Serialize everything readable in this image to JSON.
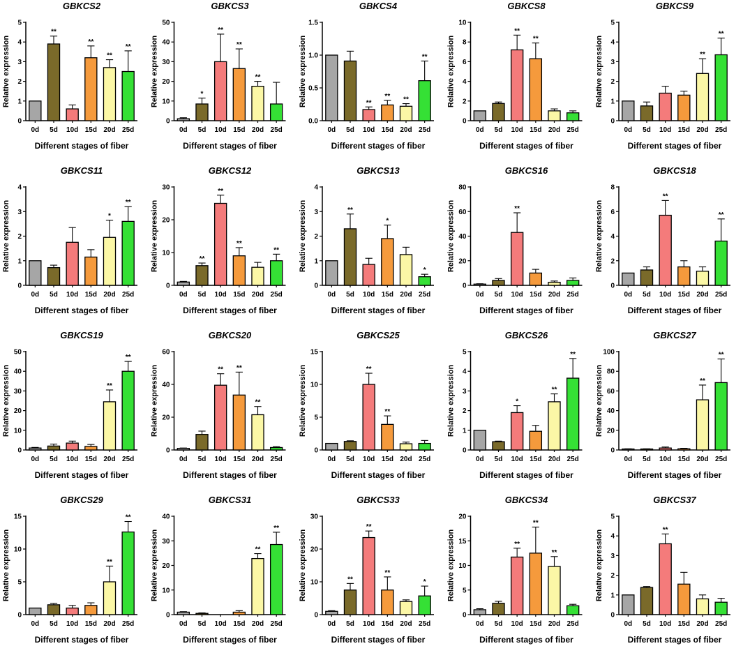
{
  "figure": {
    "categories": [
      "0d",
      "5d",
      "10d",
      "15d",
      "20d",
      "25d"
    ],
    "xlabel": "Different stages of fiber",
    "ylabel": "Relative expression",
    "bar_colors": [
      "#a6a6a6",
      "#7a6a2a",
      "#f47b7b",
      "#f59a3c",
      "#fbf7a6",
      "#35e035"
    ]
  },
  "chart_data": [
    {
      "type": "bar",
      "title": "GBKCS2",
      "categories": [
        "0d",
        "5d",
        "10d",
        "15d",
        "20d",
        "25d"
      ],
      "ylim": [
        0,
        5
      ],
      "yticks": [
        0,
        1,
        2,
        3,
        4,
        5
      ],
      "values": [
        1,
        3.9,
        0.6,
        3.2,
        2.7,
        2.5
      ],
      "errors": [
        0,
        0.4,
        0.2,
        0.6,
        0.4,
        1.05
      ],
      "sig": [
        "",
        "**",
        "",
        "**",
        "**",
        "**"
      ]
    },
    {
      "type": "bar",
      "title": "GBKCS3",
      "categories": [
        "0d",
        "5d",
        "10d",
        "15d",
        "20d",
        "25d"
      ],
      "ylim": [
        0,
        50
      ],
      "yticks": [
        0,
        10,
        20,
        30,
        40,
        50
      ],
      "values": [
        1,
        8.5,
        30,
        26.5,
        17.5,
        8.5
      ],
      "errors": [
        0.5,
        3,
        14,
        10,
        2.5,
        11
      ],
      "sig": [
        "",
        "*",
        "**",
        "**",
        "**",
        ""
      ]
    },
    {
      "type": "bar",
      "title": "GBKCS4",
      "categories": [
        "0d",
        "5d",
        "10d",
        "15d",
        "20d",
        "25d"
      ],
      "ylim": [
        0,
        1.5
      ],
      "yticks": [
        0,
        0.5,
        1.0,
        1.5
      ],
      "values": [
        1,
        0.91,
        0.17,
        0.24,
        0.22,
        0.61
      ],
      "errors": [
        0,
        0.15,
        0.04,
        0.07,
        0.04,
        0.3
      ],
      "sig": [
        "",
        "",
        "**",
        "**",
        "**",
        "**"
      ]
    },
    {
      "type": "bar",
      "title": "GBKCS8",
      "categories": [
        "0d",
        "5d",
        "10d",
        "15d",
        "20d",
        "25d"
      ],
      "ylim": [
        0,
        10
      ],
      "yticks": [
        0,
        2,
        4,
        6,
        8,
        10
      ],
      "values": [
        1,
        1.75,
        7.2,
        6.3,
        1,
        0.8
      ],
      "errors": [
        0,
        0.15,
        1.5,
        1.6,
        0.2,
        0.2
      ],
      "sig": [
        "",
        "",
        "**",
        "**",
        "",
        ""
      ]
    },
    {
      "type": "bar",
      "title": "GBKCS9",
      "categories": [
        "0d",
        "5d",
        "10d",
        "15d",
        "20d",
        "25d"
      ],
      "ylim": [
        0,
        5
      ],
      "yticks": [
        0,
        1,
        2,
        3,
        4,
        5
      ],
      "values": [
        1,
        0.75,
        1.4,
        1.3,
        2.4,
        3.35
      ],
      "errors": [
        0,
        0.2,
        0.35,
        0.2,
        0.75,
        0.85
      ],
      "sig": [
        "",
        "",
        "",
        "",
        "**",
        "**"
      ]
    },
    {
      "type": "bar",
      "title": "GBKCS11",
      "categories": [
        "0d",
        "5d",
        "10d",
        "15d",
        "20d",
        "25d"
      ],
      "ylim": [
        0,
        4
      ],
      "yticks": [
        0,
        1,
        2,
        3,
        4
      ],
      "values": [
        1,
        0.72,
        1.75,
        1.15,
        1.95,
        2.6
      ],
      "errors": [
        0,
        0.1,
        0.6,
        0.3,
        0.7,
        0.6
      ],
      "sig": [
        "",
        "",
        "",
        "",
        "*",
        "**"
      ]
    },
    {
      "type": "bar",
      "title": "GBKCS12",
      "categories": [
        "0d",
        "5d",
        "10d",
        "15d",
        "20d",
        "25d"
      ],
      "ylim": [
        0,
        30
      ],
      "yticks": [
        0,
        10,
        20,
        30
      ],
      "values": [
        1,
        6,
        25,
        9,
        5.5,
        7.5
      ],
      "errors": [
        0.2,
        0.8,
        2.5,
        2.5,
        1.5,
        2
      ],
      "sig": [
        "",
        "**",
        "**",
        "**",
        "",
        "**"
      ]
    },
    {
      "type": "bar",
      "title": "GBKCS13",
      "categories": [
        "0d",
        "5d",
        "10d",
        "15d",
        "20d",
        "25d"
      ],
      "ylim": [
        0,
        4
      ],
      "yticks": [
        0,
        1,
        2,
        3,
        4
      ],
      "values": [
        1,
        2.3,
        0.85,
        1.9,
        1.25,
        0.35
      ],
      "errors": [
        0,
        0.6,
        0.25,
        0.55,
        0.3,
        0.1
      ],
      "sig": [
        "",
        "**",
        "",
        "*",
        "",
        "*"
      ]
    },
    {
      "type": "bar",
      "title": "GBKCS16",
      "categories": [
        "0d",
        "5d",
        "10d",
        "15d",
        "20d",
        "25d"
      ],
      "ylim": [
        0,
        80
      ],
      "yticks": [
        0,
        20,
        40,
        60,
        80
      ],
      "values": [
        1,
        4,
        43,
        10,
        2.5,
        4
      ],
      "errors": [
        0.3,
        1.5,
        16,
        3,
        1,
        2
      ],
      "sig": [
        "",
        "",
        "**",
        "",
        "",
        ""
      ]
    },
    {
      "type": "bar",
      "title": "GBKCS18",
      "categories": [
        "0d",
        "5d",
        "10d",
        "15d",
        "20d",
        "25d"
      ],
      "ylim": [
        0,
        8
      ],
      "yticks": [
        0,
        2,
        4,
        6,
        8
      ],
      "values": [
        1,
        1.25,
        5.7,
        1.5,
        1.15,
        3.6
      ],
      "errors": [
        0,
        0.25,
        1.2,
        0.5,
        0.35,
        1.8
      ],
      "sig": [
        "",
        "",
        "**",
        "",
        "",
        "**"
      ]
    },
    {
      "type": "bar",
      "title": "GBKCS19",
      "categories": [
        "0d",
        "5d",
        "10d",
        "15d",
        "20d",
        "25d"
      ],
      "ylim": [
        0,
        50
      ],
      "yticks": [
        0,
        10,
        20,
        30,
        40,
        50
      ],
      "values": [
        1,
        2,
        3.5,
        1.8,
        24.5,
        40
      ],
      "errors": [
        0.3,
        1,
        1,
        1,
        6,
        5
      ],
      "sig": [
        "",
        "",
        "",
        "",
        "**",
        "**"
      ]
    },
    {
      "type": "bar",
      "title": "GBKCS20",
      "categories": [
        "0d",
        "5d",
        "10d",
        "15d",
        "20d",
        "25d"
      ],
      "ylim": [
        0,
        60
      ],
      "yticks": [
        0,
        20,
        40,
        60
      ],
      "values": [
        1,
        9.5,
        39.5,
        33.5,
        21.5,
        1.5
      ],
      "errors": [
        0.2,
        2,
        7,
        14,
        5,
        0.5
      ],
      "sig": [
        "",
        "",
        "**",
        "**",
        "**",
        ""
      ]
    },
    {
      "type": "bar",
      "title": "GBKCS25",
      "categories": [
        "0d",
        "5d",
        "10d",
        "15d",
        "20d",
        "25d"
      ],
      "ylim": [
        0,
        15
      ],
      "yticks": [
        0,
        5,
        10,
        15
      ],
      "values": [
        1,
        1.3,
        10,
        3.9,
        0.95,
        1
      ],
      "errors": [
        0,
        0.1,
        1.7,
        1.3,
        0.25,
        0.45
      ],
      "sig": [
        "",
        "",
        "**",
        "**",
        "",
        ""
      ]
    },
    {
      "type": "bar",
      "title": "GBKCS26",
      "categories": [
        "0d",
        "5d",
        "10d",
        "15d",
        "20d",
        "25d"
      ],
      "ylim": [
        0,
        5
      ],
      "yticks": [
        0,
        1,
        2,
        3,
        4,
        5
      ],
      "values": [
        1,
        0.42,
        1.9,
        0.95,
        2.45,
        3.65
      ],
      "errors": [
        0,
        0.03,
        0.35,
        0.3,
        0.4,
        1
      ],
      "sig": [
        "",
        "",
        "*",
        "",
        "**",
        "**"
      ]
    },
    {
      "type": "bar",
      "title": "GBKCS27",
      "categories": [
        "0d",
        "5d",
        "10d",
        "15d",
        "20d",
        "25d"
      ],
      "ylim": [
        0,
        100
      ],
      "yticks": [
        0,
        20,
        40,
        60,
        80,
        100
      ],
      "values": [
        1,
        1,
        2,
        1.2,
        51,
        68.5
      ],
      "errors": [
        0.2,
        0.2,
        1,
        0.5,
        15,
        24
      ],
      "sig": [
        "",
        "",
        "",
        "",
        "**",
        "**"
      ]
    },
    {
      "type": "bar",
      "title": "GBKCS29",
      "categories": [
        "0d",
        "5d",
        "10d",
        "15d",
        "20d",
        "25d"
      ],
      "ylim": [
        0,
        15
      ],
      "yticks": [
        0,
        5,
        10,
        15
      ],
      "values": [
        1,
        1.5,
        1,
        1.4,
        5,
        12.6
      ],
      "errors": [
        0,
        0.2,
        0.4,
        0.4,
        2.4,
        1.6
      ],
      "sig": [
        "",
        "",
        "",
        "",
        "**",
        "**"
      ]
    },
    {
      "type": "bar",
      "title": "GBKCS31",
      "categories": [
        "0d",
        "5d",
        "10d",
        "15d",
        "20d",
        "25d"
      ],
      "ylim": [
        0,
        40
      ],
      "yticks": [
        0,
        10,
        20,
        30,
        40
      ],
      "values": [
        1,
        0.5,
        0,
        1,
        22.8,
        28.5
      ],
      "errors": [
        0.2,
        0.2,
        0,
        0.6,
        2,
        5
      ],
      "sig": [
        "",
        "",
        "",
        "",
        "**",
        "**"
      ]
    },
    {
      "type": "bar",
      "title": "GBKCS33",
      "categories": [
        "0d",
        "5d",
        "10d",
        "15d",
        "20d",
        "25d"
      ],
      "ylim": [
        0,
        30
      ],
      "yticks": [
        0,
        10,
        20,
        30
      ],
      "values": [
        1,
        7.5,
        23.5,
        7.5,
        4,
        5.7
      ],
      "errors": [
        0.2,
        2,
        2,
        4,
        0.5,
        3
      ],
      "sig": [
        "",
        "**",
        "**",
        "**",
        "",
        "*"
      ]
    },
    {
      "type": "bar",
      "title": "GBKCS34",
      "categories": [
        "0d",
        "5d",
        "10d",
        "15d",
        "20d",
        "25d"
      ],
      "ylim": [
        0,
        20
      ],
      "yticks": [
        0,
        5,
        10,
        15,
        20
      ],
      "values": [
        1,
        2.3,
        11.7,
        12.5,
        9.8,
        1.8
      ],
      "errors": [
        0.2,
        0.4,
        1.8,
        5.3,
        2,
        0.3
      ],
      "sig": [
        "",
        "",
        "**",
        "**",
        "**",
        ""
      ]
    },
    {
      "type": "bar",
      "title": "GBKCS37",
      "categories": [
        "0d",
        "5d",
        "10d",
        "15d",
        "20d",
        "25d"
      ],
      "ylim": [
        0,
        5
      ],
      "yticks": [
        0,
        1,
        2,
        3,
        4,
        5
      ],
      "values": [
        1,
        1.38,
        3.6,
        1.55,
        0.8,
        0.63
      ],
      "errors": [
        0,
        0.05,
        0.5,
        0.6,
        0.2,
        0.2
      ],
      "sig": [
        "",
        "",
        "**",
        "",
        "",
        ""
      ]
    }
  ]
}
